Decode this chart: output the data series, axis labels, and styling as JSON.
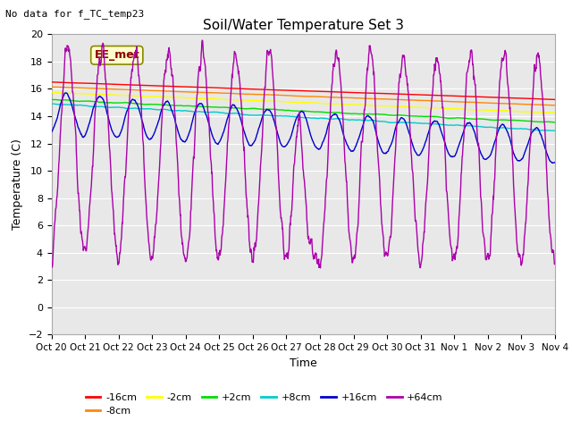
{
  "title": "Soil/Water Temperature Set 3",
  "xlabel": "Time",
  "ylabel": "Temperature (C)",
  "note": "No data for f_TC_temp23",
  "annotation": "EE_met",
  "ylim": [
    -2,
    20
  ],
  "yticks": [
    -2,
    0,
    2,
    4,
    6,
    8,
    10,
    12,
    14,
    16,
    18,
    20
  ],
  "xtick_labels": [
    "Oct 20",
    "Oct 21",
    "Oct 22",
    "Oct 23",
    "Oct 24",
    "Oct 25",
    "Oct 26",
    "Oct 27",
    "Oct 28",
    "Oct 29",
    "Oct 30",
    "Oct 31",
    "Nov 1",
    "Nov 2",
    "Nov 3",
    "Nov 4"
  ],
  "series_order": [
    "-16cm",
    "-8cm",
    "-2cm",
    "+2cm",
    "+8cm",
    "+16cm",
    "+64cm"
  ],
  "series": {
    "-16cm": {
      "color": "#ff0000",
      "linewidth": 1.0
    },
    "-8cm": {
      "color": "#ff8800",
      "linewidth": 1.0
    },
    "-2cm": {
      "color": "#ffff00",
      "linewidth": 1.0
    },
    "+2cm": {
      "color": "#00dd00",
      "linewidth": 1.0
    },
    "+8cm": {
      "color": "#00cccc",
      "linewidth": 1.0
    },
    "+16cm": {
      "color": "#0000cc",
      "linewidth": 1.0
    },
    "+64cm": {
      "color": "#aa00aa",
      "linewidth": 1.0
    }
  },
  "plot_bg_color": "#e8e8e8",
  "grid_color": "#ffffff",
  "figsize": [
    6.4,
    4.8
  ],
  "dpi": 100
}
